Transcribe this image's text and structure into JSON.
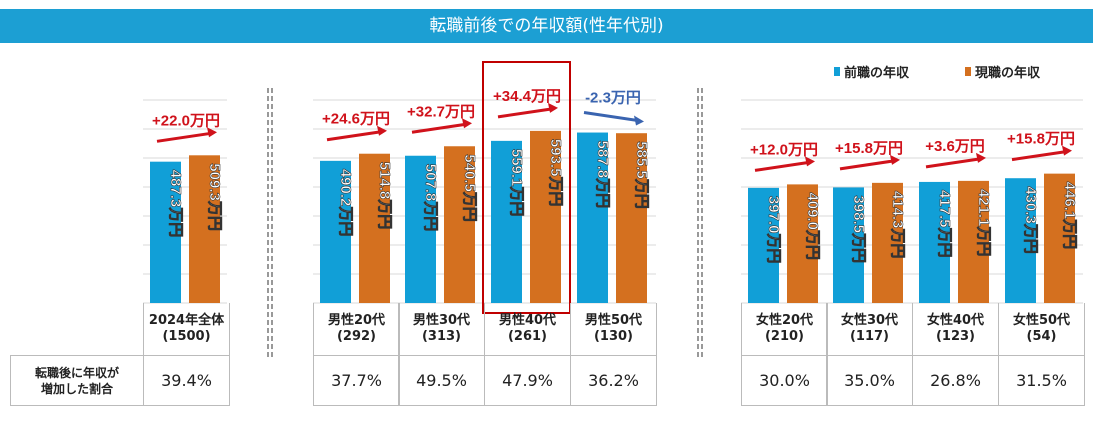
{
  "title": "転職前後での年収額(性年代別)",
  "row_label": "転職後に年収が\n増加した割合",
  "chart_data": {
    "type": "bar",
    "title": "転職前後での年収額(性年代別)",
    "ylim": [
      0,
      700
    ],
    "grid": true,
    "legend_position": "top-right",
    "colors": {
      "before": "#119fd7",
      "after": "#d4701f",
      "up": "#d0121b",
      "down": "#3a64b0",
      "highlight": "#c00000"
    },
    "series": [
      {
        "name": "前職の年収"
      },
      {
        "name": "現職の年収"
      }
    ],
    "groups": [
      {
        "category": "2024年全体",
        "n": "(1500)",
        "before": 487.3,
        "after": 509.3,
        "before_label": "487.3万円",
        "after_label": "509.3万円",
        "change": "+22.0万円",
        "increase_ratio": "39.4%"
      },
      {
        "category": "男性20代",
        "n": "(292)",
        "before": 490.2,
        "after": 514.8,
        "before_label": "490.2万円",
        "after_label": "514.8万円",
        "change": "+24.6万円",
        "increase_ratio": "37.7%"
      },
      {
        "category": "男性30代",
        "n": "(313)",
        "before": 507.8,
        "after": 540.5,
        "before_label": "507.8万円",
        "after_label": "540.5万円",
        "change": "+32.7万円",
        "increase_ratio": "49.5%"
      },
      {
        "category": "男性40代",
        "n": "(261)",
        "before": 559.1,
        "after": 593.5,
        "before_label": "559.1万円",
        "after_label": "593.5万円",
        "change": "+34.4万円",
        "increase_ratio": "47.9%",
        "highlight": true
      },
      {
        "category": "男性50代",
        "n": "(130)",
        "before": 587.8,
        "after": 585.5,
        "before_label": "587.8万円",
        "after_label": "585.5万円",
        "change": "-2.3万円",
        "increase_ratio": "36.2%"
      },
      {
        "category": "女性20代",
        "n": "(210)",
        "before": 397.0,
        "after": 409.0,
        "before_label": "397.0万円",
        "after_label": "409.0万円",
        "change": "+12.0万円",
        "increase_ratio": "30.0%"
      },
      {
        "category": "女性30代",
        "n": "(117)",
        "before": 398.5,
        "after": 414.3,
        "before_label": "398.5万円",
        "after_label": "414.3万円",
        "change": "+15.8万円",
        "increase_ratio": "35.0%"
      },
      {
        "category": "女性40代",
        "n": "(123)",
        "before": 417.5,
        "after": 421.1,
        "before_label": "417.5万円",
        "after_label": "421.1万円",
        "change": "+3.6万円",
        "increase_ratio": "26.8%"
      },
      {
        "category": "女性50代",
        "n": "(54)",
        "before": 430.3,
        "after": 446.1,
        "before_label": "430.3万円",
        "after_label": "446.1万円",
        "change": "+15.8万円",
        "increase_ratio": "31.5%"
      }
    ]
  }
}
